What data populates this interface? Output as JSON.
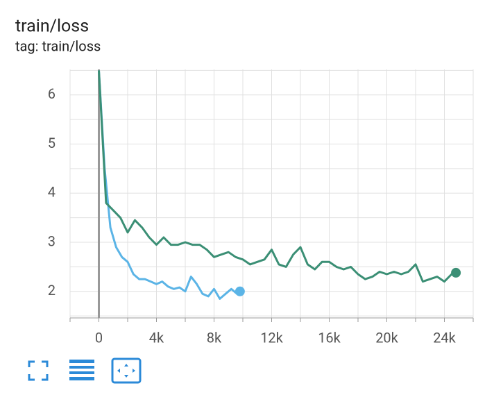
{
  "chart_data": {
    "type": "line",
    "title": "train/loss",
    "subtitle": "tag: train/loss",
    "xlim": [
      -2000,
      26000
    ],
    "xticks": [
      {
        "value": 0,
        "label": "0"
      },
      {
        "value": 4000,
        "label": "4k"
      },
      {
        "value": 8000,
        "label": "8k"
      },
      {
        "value": 12000,
        "label": "12k"
      },
      {
        "value": 16000,
        "label": "16k"
      },
      {
        "value": 20000,
        "label": "20k"
      },
      {
        "value": 24000,
        "label": "24k"
      }
    ],
    "x_minor_ticks": [
      -2000,
      2000,
      6000,
      10000,
      14000,
      18000,
      22000,
      26000
    ],
    "ylim": [
      1.46,
      6.52
    ],
    "yticks": [
      2,
      3,
      4,
      5,
      6
    ],
    "y_minor_ticks": [
      1.5,
      2.5,
      3.5,
      4.5,
      5.5,
      6.5
    ],
    "grid": true,
    "series": [
      {
        "color": "#5bb4e6",
        "x": [
          0,
          400,
          800,
          1200,
          1600,
          2000,
          2400,
          2800,
          3200,
          3600,
          4000,
          4400,
          4800,
          5200,
          5600,
          6000,
          6400,
          6800,
          7200,
          7600,
          8000,
          8400,
          8800,
          9200,
          9600,
          9800
        ],
        "values": [
          6.5,
          4.5,
          3.3,
          2.9,
          2.7,
          2.6,
          2.35,
          2.25,
          2.25,
          2.2,
          2.15,
          2.2,
          2.1,
          2.05,
          2.08,
          2.0,
          2.3,
          2.15,
          1.95,
          1.9,
          2.05,
          1.85,
          1.95,
          2.05,
          1.95,
          2.0
        ]
      },
      {
        "color": "#3b8f75",
        "x": [
          0,
          500,
          1000,
          1500,
          2000,
          2500,
          3000,
          3500,
          4000,
          4500,
          5000,
          5500,
          6000,
          6500,
          7000,
          7500,
          8000,
          8500,
          9000,
          9500,
          10000,
          10500,
          11000,
          11500,
          12000,
          12500,
          13000,
          13500,
          14000,
          14500,
          15000,
          15500,
          16000,
          16500,
          17000,
          17500,
          18000,
          18500,
          19000,
          19500,
          20000,
          20500,
          21000,
          21500,
          22000,
          22500,
          23000,
          23500,
          24000,
          24500,
          24800
        ],
        "values": [
          6.5,
          3.8,
          3.65,
          3.5,
          3.2,
          3.45,
          3.3,
          3.1,
          2.95,
          3.1,
          2.95,
          2.95,
          3.0,
          2.95,
          2.95,
          2.85,
          2.7,
          2.75,
          2.8,
          2.7,
          2.65,
          2.55,
          2.6,
          2.65,
          2.85,
          2.55,
          2.5,
          2.75,
          2.9,
          2.55,
          2.45,
          2.6,
          2.6,
          2.5,
          2.45,
          2.5,
          2.35,
          2.25,
          2.3,
          2.4,
          2.35,
          2.4,
          2.35,
          2.4,
          2.55,
          2.2,
          2.25,
          2.3,
          2.2,
          2.35,
          2.38
        ]
      }
    ]
  }
}
